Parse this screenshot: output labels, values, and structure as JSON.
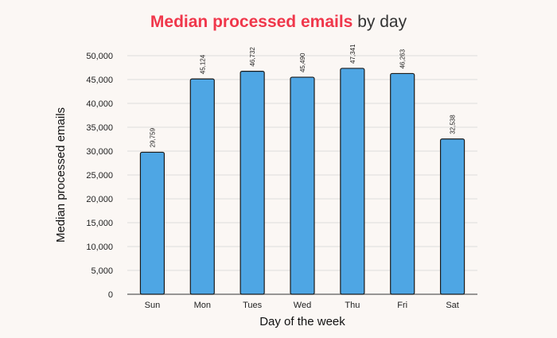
{
  "title": {
    "highlight": "Median processed emails",
    "rest": " by day"
  },
  "colors": {
    "highlight": "#f0374b",
    "bar_fill": "#4ea6e4",
    "bar_stroke": "#1a1a1a",
    "grid": "#dddddd",
    "background": "#fbf7f4"
  },
  "chart_data": {
    "type": "bar",
    "categories": [
      "Sun",
      "Mon",
      "Tues",
      "Wed",
      "Thu",
      "Fri",
      "Sat"
    ],
    "values": [
      29759,
      45124,
      46732,
      45490,
      47341,
      46263,
      32538
    ],
    "data_labels": [
      "29,759",
      "45,124",
      "46,732",
      "45,490",
      "47,341",
      "46,263",
      "32,538"
    ],
    "xlabel": "Day of the week",
    "ylabel": "Median processed emails",
    "ylim": [
      0,
      50000
    ],
    "yticks": [
      0,
      5000,
      10000,
      15000,
      20000,
      25000,
      30000,
      35000,
      40000,
      45000,
      50000
    ],
    "ytick_labels": [
      "0",
      "5,000",
      "10,000",
      "15,000",
      "20,000",
      "25,000",
      "30,000",
      "35,000",
      "40,000",
      "45,000",
      "50,000"
    ],
    "grid": true,
    "legend": "none"
  }
}
